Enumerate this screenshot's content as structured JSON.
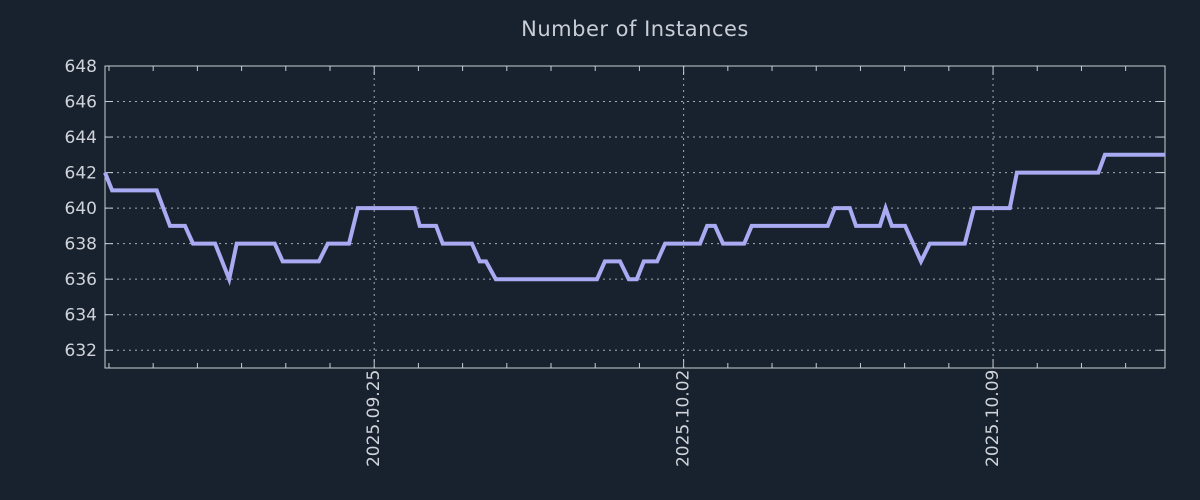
{
  "page": {
    "background_color": "#18212e"
  },
  "colors": {
    "background": "#18212e",
    "line": "#a8abf2",
    "spine": "#c9ced4",
    "grid": "#a4abb4",
    "tick_label": "#d0d4da",
    "title": "#c9ced6"
  },
  "chart_data": {
    "type": "line",
    "title": "Number of Instances",
    "grid": "dotted",
    "legend": "none",
    "x_axis": {
      "unit": "days relative to 2025-09-25",
      "range": [
        -6.09,
        17.89
      ],
      "minor_tick_interval": 1,
      "major_ticks": [
        {
          "day": 0,
          "label": "2025.09.25"
        },
        {
          "day": 7,
          "label": "2025.10.02"
        },
        {
          "day": 14,
          "label": "2025.10.09"
        }
      ],
      "label_rotation_deg": -90
    },
    "y_axis": {
      "range": [
        631,
        648
      ],
      "tick_interval": 2,
      "tick_labels": [
        648,
        646,
        644,
        642,
        640,
        638,
        636,
        634,
        632
      ]
    },
    "series": [
      {
        "name": "Number of Instances",
        "color": "#a8abf2",
        "points": [
          [
            -6.09,
            642
          ],
          [
            -5.93,
            641
          ],
          [
            -4.92,
            641
          ],
          [
            -4.62,
            639
          ],
          [
            -4.28,
            639
          ],
          [
            -4.1,
            638
          ],
          [
            -3.6,
            638
          ],
          [
            -3.28,
            636
          ],
          [
            -3.11,
            638
          ],
          [
            -2.25,
            638
          ],
          [
            -2.07,
            637
          ],
          [
            -1.25,
            637
          ],
          [
            -1.05,
            638
          ],
          [
            -0.57,
            638
          ],
          [
            -0.37,
            640
          ],
          [
            0.92,
            640
          ],
          [
            1.03,
            639
          ],
          [
            1.4,
            639
          ],
          [
            1.55,
            638
          ],
          [
            2.21,
            638
          ],
          [
            2.39,
            637
          ],
          [
            2.53,
            637
          ],
          [
            2.75,
            636
          ],
          [
            5.04,
            636
          ],
          [
            5.22,
            637
          ],
          [
            5.56,
            637
          ],
          [
            5.76,
            636
          ],
          [
            5.94,
            636
          ],
          [
            6.1,
            637
          ],
          [
            6.4,
            637
          ],
          [
            6.58,
            638
          ],
          [
            7.37,
            638
          ],
          [
            7.53,
            639
          ],
          [
            7.71,
            639
          ],
          [
            7.89,
            638
          ],
          [
            8.37,
            638
          ],
          [
            8.54,
            639
          ],
          [
            10.26,
            639
          ],
          [
            10.42,
            640
          ],
          [
            10.76,
            640
          ],
          [
            10.9,
            639
          ],
          [
            11.44,
            639
          ],
          [
            11.57,
            640
          ],
          [
            11.71,
            639
          ],
          [
            12.01,
            639
          ],
          [
            12.37,
            637
          ],
          [
            12.57,
            638
          ],
          [
            13.36,
            638
          ],
          [
            13.57,
            640
          ],
          [
            14.38,
            640
          ],
          [
            14.54,
            642
          ],
          [
            16.38,
            642
          ],
          [
            16.53,
            643
          ],
          [
            17.89,
            643
          ]
        ]
      }
    ]
  }
}
